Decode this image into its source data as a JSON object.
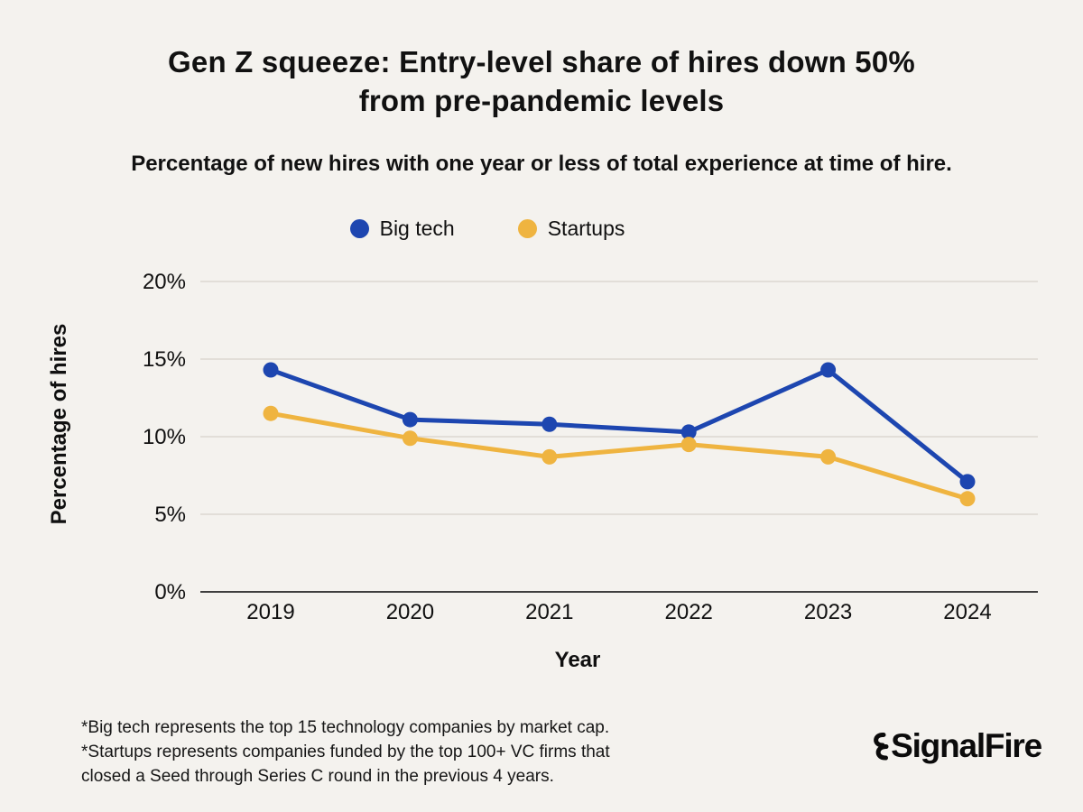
{
  "header": {
    "title_line1": "Gen Z squeeze: Entry-level share of hires down 50%",
    "title_line2": "from pre-pandemic levels",
    "subtitle": "Percentage of new hires with one year or less of total experience at time of hire."
  },
  "legend": [
    {
      "label": "Big tech",
      "color": "#1d46b0"
    },
    {
      "label": "Startups",
      "color": "#efb440"
    }
  ],
  "chart_data": {
    "type": "line",
    "title": "Gen Z squeeze: Entry-level share of hires down 50% from pre-pandemic levels",
    "subtitle": "Percentage of new hires with one year or less of total experience at time of hire.",
    "x": [
      2019,
      2020,
      2021,
      2022,
      2023,
      2024
    ],
    "series": [
      {
        "name": "Big tech",
        "color": "#1d46b0",
        "values": [
          14.3,
          11.1,
          10.8,
          10.3,
          14.3,
          7.1
        ]
      },
      {
        "name": "Startups",
        "color": "#efb440",
        "values": [
          11.5,
          9.9,
          8.7,
          9.5,
          8.7,
          6.0
        ]
      }
    ],
    "xlabel": "Year",
    "ylabel": "Percentage of hires",
    "ylim": [
      0,
      20
    ],
    "yticks": [
      0,
      5,
      10,
      15,
      20
    ],
    "ytick_labels": [
      "0%",
      "5%",
      "10%",
      "15%",
      "20%"
    ],
    "grid": true,
    "legend_position": "top",
    "grid_color": "#dbd8d1",
    "axis_line_color": "#3f3f3f",
    "background_color": "#f4f2ee"
  },
  "footnote": {
    "lines": [
      "*Big tech represents the top 15 technology companies by market cap.",
      "*Startups represents companies funded by the top 100+ VC firms that",
      "closed a Seed through Series C round in the previous 4 years."
    ]
  },
  "logo": {
    "text": "SignalFire"
  }
}
